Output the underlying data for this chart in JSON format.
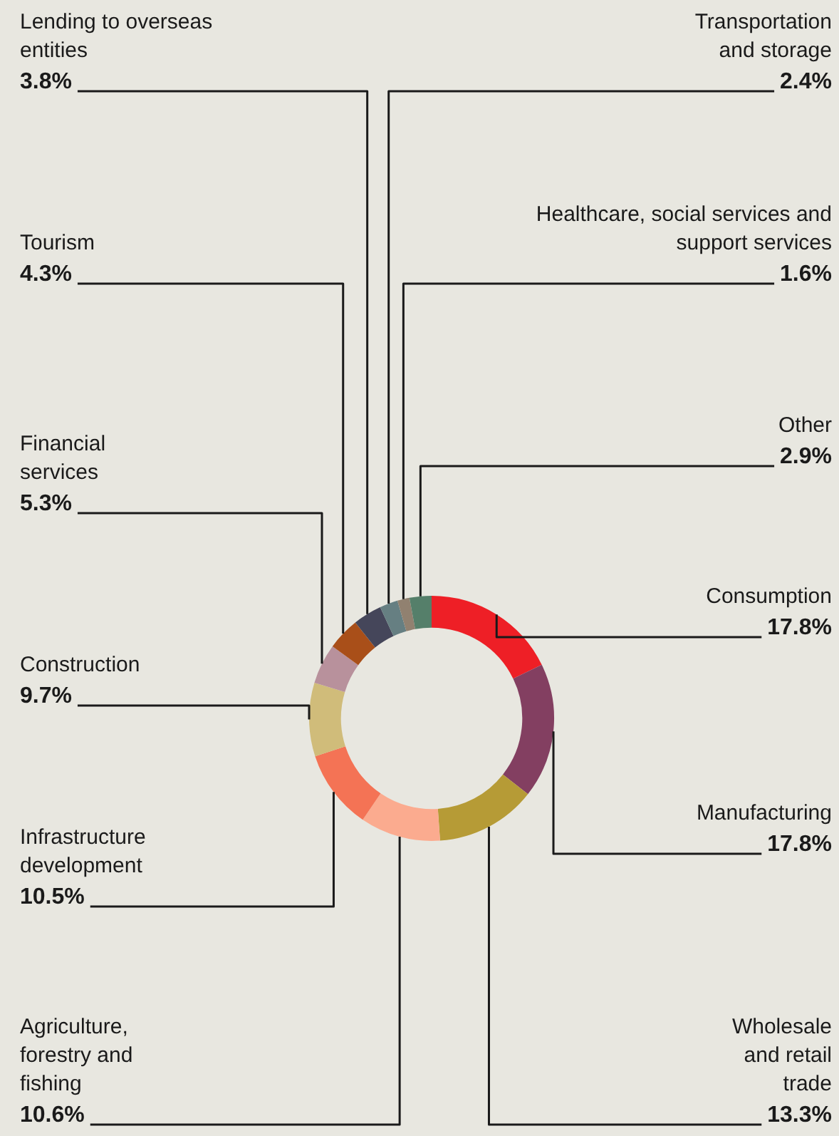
{
  "chart_data": {
    "type": "donut",
    "categories": [
      "Consumption",
      "Manufacturing",
      "Wholesale and retail trade",
      "Agriculture, forestry and fishing",
      "Infrastructure development",
      "Construction",
      "Financial services",
      "Tourism",
      "Lending to overseas entities",
      "Transportation and storage",
      "Healthcare, social services and support services",
      "Other"
    ],
    "values": [
      17.8,
      17.8,
      13.3,
      10.6,
      10.5,
      9.7,
      5.3,
      4.3,
      3.8,
      2.4,
      1.6,
      2.9
    ],
    "colors": [
      "#ee1f26",
      "#833f61",
      "#b69b36",
      "#fbab8f",
      "#f47355",
      "#d0bc7a",
      "#b8919c",
      "#a94f19",
      "#45465a",
      "#667f82",
      "#918170",
      "#557f6a"
    ],
    "value_labels": [
      "17.8%",
      "17.8%",
      "13.3%",
      "10.6%",
      "10.5%",
      "9.7%",
      "5.3%",
      "4.3%",
      "3.8%",
      "2.4%",
      "1.6%",
      "2.9%"
    ],
    "legend": false
  }
}
